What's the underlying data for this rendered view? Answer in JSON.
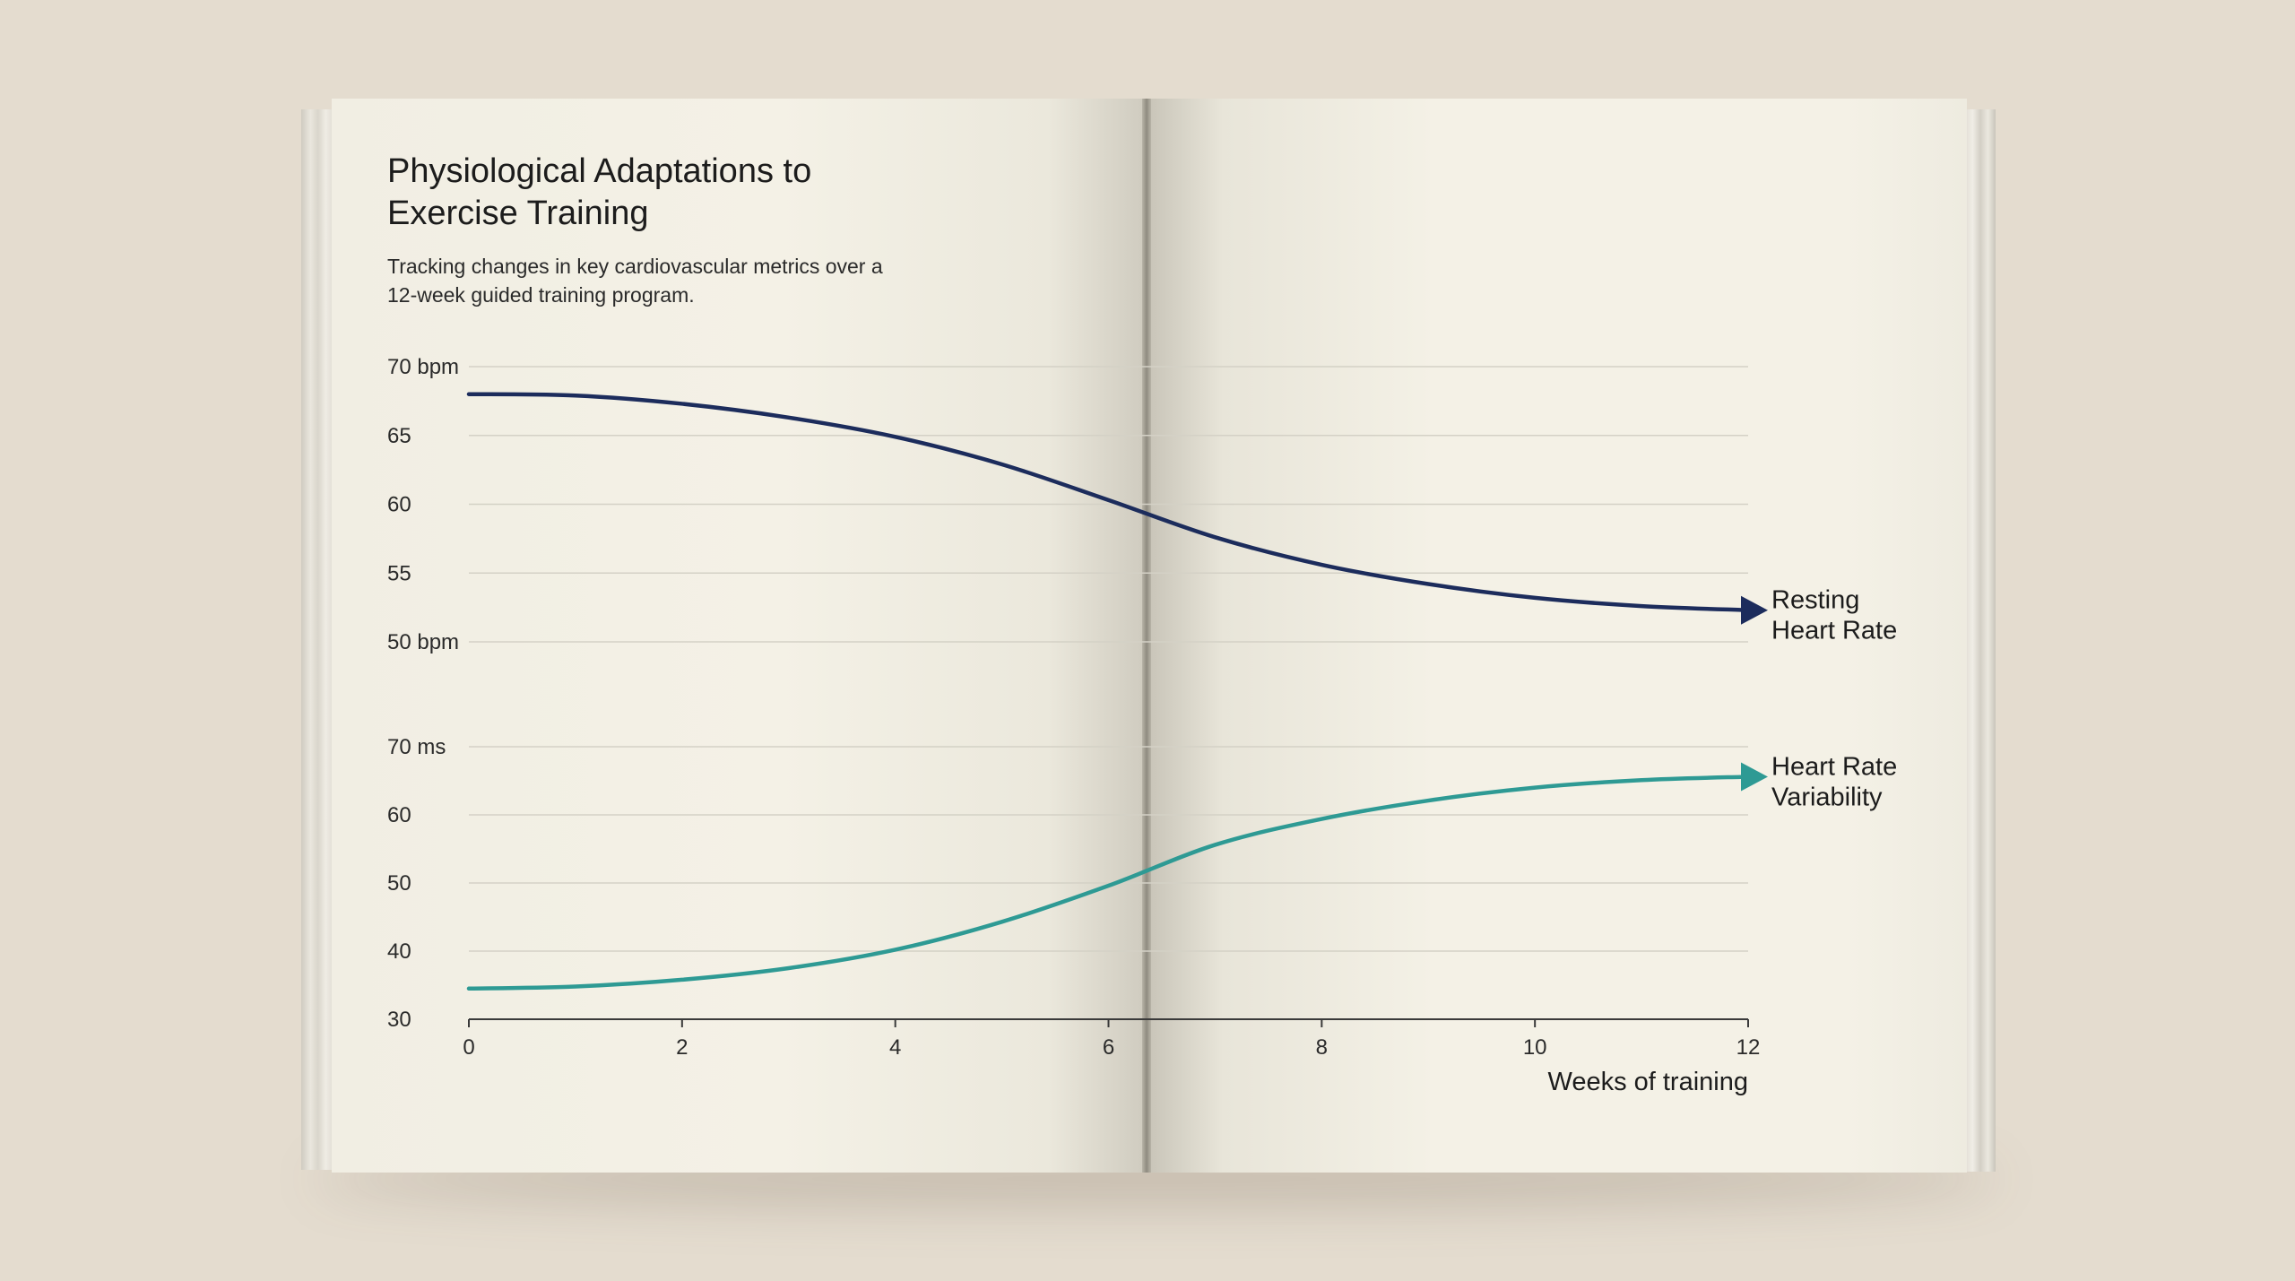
{
  "title": "Physiological Adaptations to Exercise Training",
  "subtitle": "Tracking changes in key cardiovascular metrics over a 12-week guided training program.",
  "colors": {
    "resting_hr": "#1c2c5c",
    "hrv": "#2e9a94",
    "grid": "#d4d1c6",
    "axis": "#3a3a3a"
  },
  "chart_data": [
    {
      "type": "line",
      "series": [
        {
          "name": "Resting Heart Rate",
          "label_lines": [
            "Resting",
            "Heart Rate"
          ],
          "x": [
            0,
            1,
            2,
            3,
            4,
            5,
            6,
            7,
            8,
            9,
            10,
            11,
            12
          ],
          "values": [
            68,
            67.9,
            67.3,
            66.3,
            64.9,
            62.9,
            60.3,
            57.6,
            55.6,
            54.2,
            53.2,
            52.6,
            52.3
          ]
        }
      ],
      "ylim": [
        50,
        70
      ],
      "yticks": [
        50,
        55,
        60,
        65,
        70
      ],
      "ytick_labels": [
        "50 bpm",
        "55",
        "60",
        "65",
        "70 bpm"
      ],
      "grid": true
    },
    {
      "type": "line",
      "series": [
        {
          "name": "Heart Rate Variability",
          "label_lines": [
            "Heart Rate",
            "Variability"
          ],
          "x": [
            0,
            1,
            2,
            3,
            4,
            5,
            6,
            7,
            8,
            9,
            10,
            11,
            12
          ],
          "values": [
            34.5,
            34.8,
            35.8,
            37.5,
            40.2,
            44.3,
            49.6,
            55.6,
            59.4,
            62.1,
            64,
            65.1,
            65.6
          ]
        }
      ],
      "ylim": [
        30,
        70
      ],
      "yticks": [
        30,
        40,
        50,
        60,
        70
      ],
      "ytick_labels": [
        "30",
        "40",
        "50",
        "60",
        "70 ms"
      ],
      "xlim": [
        0,
        12
      ],
      "xticks": [
        0,
        2,
        4,
        6,
        8,
        10,
        12
      ],
      "xtick_labels": [
        "0",
        "2",
        "4",
        "6",
        "8",
        "10",
        "12"
      ],
      "xlabel": "Weeks of training",
      "grid": true
    }
  ]
}
